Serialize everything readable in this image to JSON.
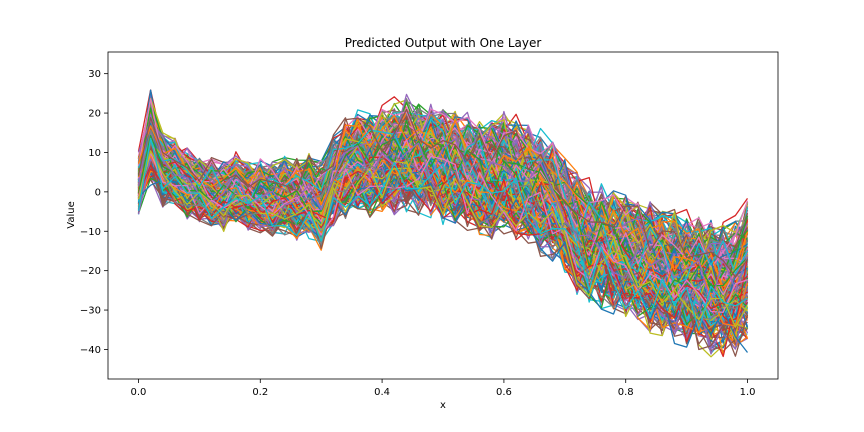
{
  "chart_data": {
    "type": "line",
    "title": "Predicted Output with One Layer",
    "xlabel": "x",
    "ylabel": "Value",
    "xlim": [
      -0.05,
      1.05
    ],
    "ylim": [
      -47.5,
      35.5
    ],
    "x_ticks": [
      0.0,
      0.2,
      0.4,
      0.6,
      0.8,
      1.0
    ],
    "x_tick_labels": [
      "0.0",
      "0.2",
      "0.4",
      "0.6",
      "0.8",
      "1.0"
    ],
    "y_ticks": [
      30,
      20,
      10,
      0,
      -10,
      -20,
      -30,
      -40
    ],
    "y_tick_labels": [
      "30",
      "20",
      "10",
      "0",
      "−10",
      "−20",
      "−30",
      "−40"
    ],
    "grid": false,
    "legend": "none",
    "n_points": 51,
    "x": [
      0.0,
      0.02,
      0.04,
      0.06,
      0.08,
      0.1,
      0.12,
      0.14,
      0.16,
      0.18,
      0.2,
      0.22,
      0.24,
      0.26,
      0.28,
      0.3,
      0.32,
      0.34,
      0.36,
      0.38,
      0.4,
      0.42,
      0.44,
      0.46,
      0.48,
      0.5,
      0.52,
      0.54,
      0.56,
      0.58,
      0.6,
      0.62,
      0.64,
      0.66,
      0.68,
      0.7,
      0.72,
      0.74,
      0.76,
      0.78,
      0.8,
      0.82,
      0.84,
      0.86,
      0.88,
      0.9,
      0.92,
      0.94,
      0.96,
      0.98,
      1.0
    ],
    "mean_curve": [
      2,
      14,
      6,
      5,
      2,
      1,
      0,
      -1,
      1,
      -1,
      -1,
      -2,
      -1,
      -2,
      -1,
      -4,
      3,
      6,
      8,
      7,
      8,
      9,
      10,
      9,
      8,
      7,
      6,
      5,
      4,
      3,
      5,
      3,
      2,
      0,
      -2,
      -6,
      -10,
      -13,
      -14,
      -15,
      -16,
      -18,
      -19,
      -20,
      -21,
      -22,
      -23,
      -24,
      -25,
      -24,
      -20
    ],
    "spread": [
      8,
      12,
      10,
      9,
      9,
      9,
      9,
      9,
      9,
      9,
      10,
      10,
      10,
      11,
      11,
      12,
      12,
      13,
      13,
      14,
      14,
      15,
      15,
      15,
      15,
      15,
      15,
      15,
      15,
      16,
      16,
      16,
      16,
      16,
      16,
      16,
      16,
      16,
      16,
      16,
      16,
      16,
      17,
      17,
      17,
      17,
      17,
      18,
      18,
      18,
      20
    ],
    "series_count": 300,
    "colors": [
      "#1f77b4",
      "#ff7f0e",
      "#2ca02c",
      "#d62728",
      "#9467bd",
      "#8c564b",
      "#e377c2",
      "#7f7f7f",
      "#bcbd22",
      "#17becf"
    ]
  }
}
